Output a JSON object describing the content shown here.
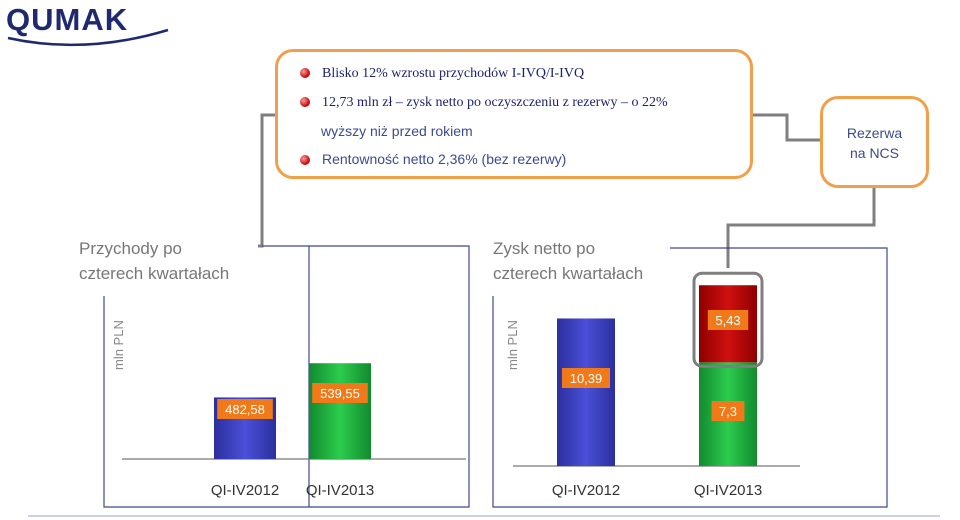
{
  "logo": {
    "text": "QUMAK"
  },
  "callout": {
    "lines": [
      "Blisko 12% wzrostu przychodów I-IVQ/I-IVQ",
      "12,73 mln zł – zysk netto po oczyszczeniu z rezerwy – o 22%",
      "wyższy niż przed rokiem",
      "Rentowność netto 2,36% (bez rezerwy)"
    ]
  },
  "reserve_box": {
    "line1": "Rezerwa",
    "line2": "na NCS"
  },
  "left_panel": {
    "title_line1": "Przychody po",
    "title_line2": "czterech kwartałach"
  },
  "right_panel": {
    "title_line1": "Zysk netto po",
    "title_line2": "czterech kwartałach"
  },
  "colors": {
    "blue_bar": "#3a3fc0",
    "green_bar": "#1fae3f",
    "red_bar": "#c00000",
    "orange_label": "#f07a1a",
    "accent_orange": "#f0a04b"
  },
  "chart_data": [
    {
      "type": "bar",
      "title": "Przychody po czterech kwartałach",
      "ylabel": "mln PLN",
      "categories": [
        "QI-IV2012",
        "QI-IV2013"
      ],
      "values": [
        482.58,
        539.55
      ],
      "value_labels": [
        "482,58",
        "539,55"
      ],
      "bar_colors": [
        "#3a3fc0",
        "#1fae3f"
      ]
    },
    {
      "type": "bar",
      "title": "Zysk netto po czterech kwartałach",
      "ylabel": "mln PLN",
      "categories": [
        "QI-IV2012",
        "QI-IV2013"
      ],
      "series": [
        {
          "values": [
            10.39,
            7.3
          ],
          "value_labels": [
            "10,39",
            "7,3"
          ]
        },
        {
          "values": [
            0,
            5.43
          ],
          "value_labels": [
            "",
            "5,43"
          ]
        }
      ],
      "stacked": true
    }
  ]
}
